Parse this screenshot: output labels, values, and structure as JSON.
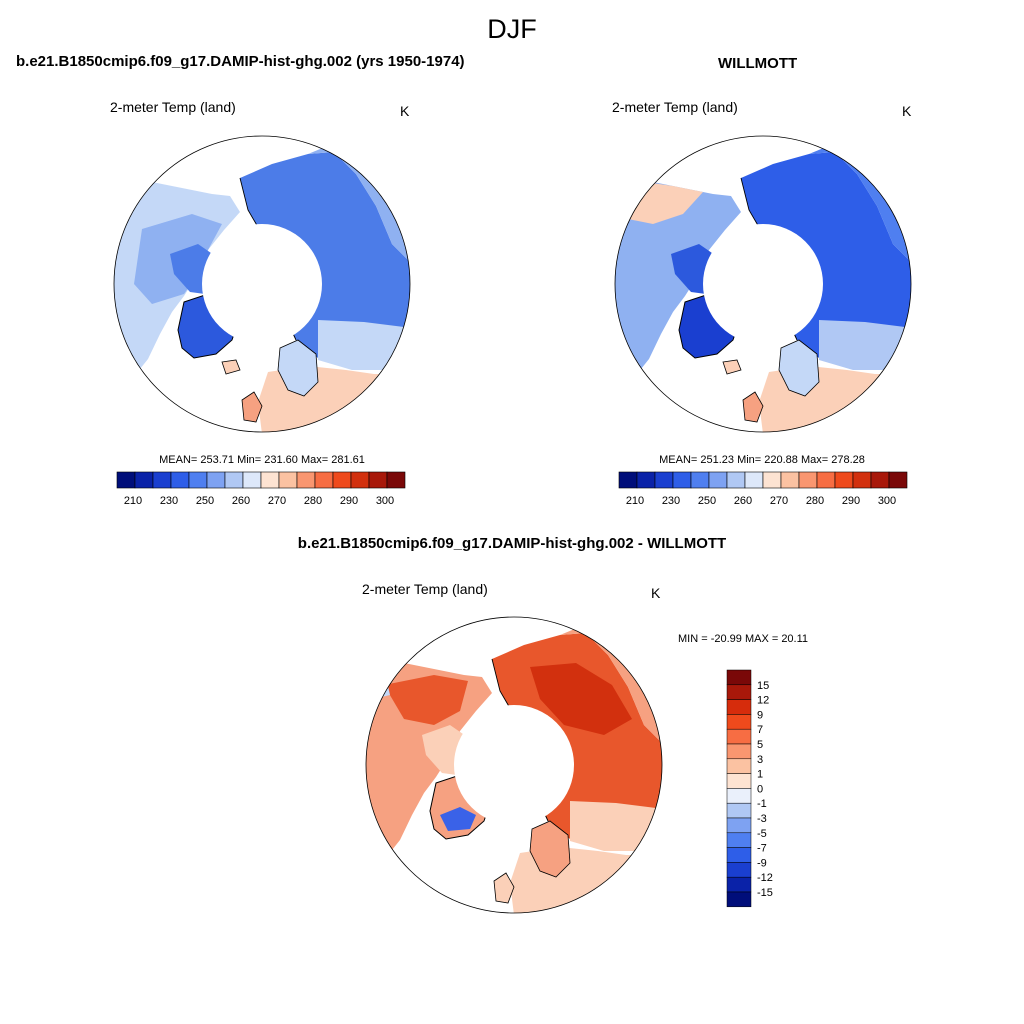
{
  "figure": {
    "season": "DJF",
    "model_title": "b.e21.B1850cmip6.f09_g17.DAMIP-hist-ghg.002 (yrs 1950-1974)",
    "obs_title": "WILLMOTT",
    "diff_title": "b.e21.B1850cmip6.f09_g17.DAMIP-hist-ghg.002 - WILLMOTT"
  },
  "panels": {
    "model": {
      "variable": "2-meter Temp (land)",
      "units": "K",
      "stats": "MEAN= 253.71  Min= 231.60  Max= 281.61",
      "mean": 253.71,
      "min": 231.6,
      "max": 281.61
    },
    "obs": {
      "variable": "2-meter Temp (land)",
      "units": "K",
      "stats": "MEAN= 251.23  Min= 220.88  Max= 278.28",
      "mean": 251.23,
      "min": 220.88,
      "max": 278.28
    },
    "diff": {
      "variable": "2-meter Temp (land)",
      "units": "K",
      "stats": "MIN = -20.99 MAX =  20.11",
      "min": -20.99,
      "max": 20.11
    }
  },
  "colorbars": {
    "absolute": {
      "tick_labels": [
        "210",
        "230",
        "250",
        "260",
        "270",
        "280",
        "290",
        "300"
      ],
      "colors": [
        "#000e7a",
        "#0a22a8",
        "#1a3fd0",
        "#2e5ee8",
        "#4f7ff0",
        "#7ea2f2",
        "#b0c8f4",
        "#dde8fa",
        "#fde3d2",
        "#fbc2a2",
        "#f99670",
        "#f76d43",
        "#ef4a1c",
        "#d2300e",
        "#a8180a",
        "#7a0808"
      ]
    },
    "difference": {
      "tick_labels": [
        "15",
        "12",
        "9",
        "7",
        "5",
        "3",
        "1",
        "0",
        "-1",
        "-3",
        "-5",
        "-7",
        "-9",
        "-12",
        "-15"
      ],
      "colors": [
        "#7a0808",
        "#a8180a",
        "#d62c0c",
        "#ef4a1c",
        "#f76d43",
        "#f99670",
        "#fbc2a2",
        "#fde3d2",
        "#eaf0fb",
        "#b0c8f4",
        "#7ea2f2",
        "#4f7ff0",
        "#2e5ee8",
        "#1a3fd0",
        "#0a22a8",
        "#000e7a"
      ]
    }
  },
  "map_colors": {
    "continent_warm": "#c4d8f7",
    "continent_mid": "#8fb1f1",
    "continent_cold": "#4c7ce8",
    "greenland": "#2c59dd",
    "europe_warm": "#fbd0b8",
    "diff_warm": "#f6a181",
    "diff_hot": "#e8572c",
    "diff_cold": "#3a62e8"
  }
}
